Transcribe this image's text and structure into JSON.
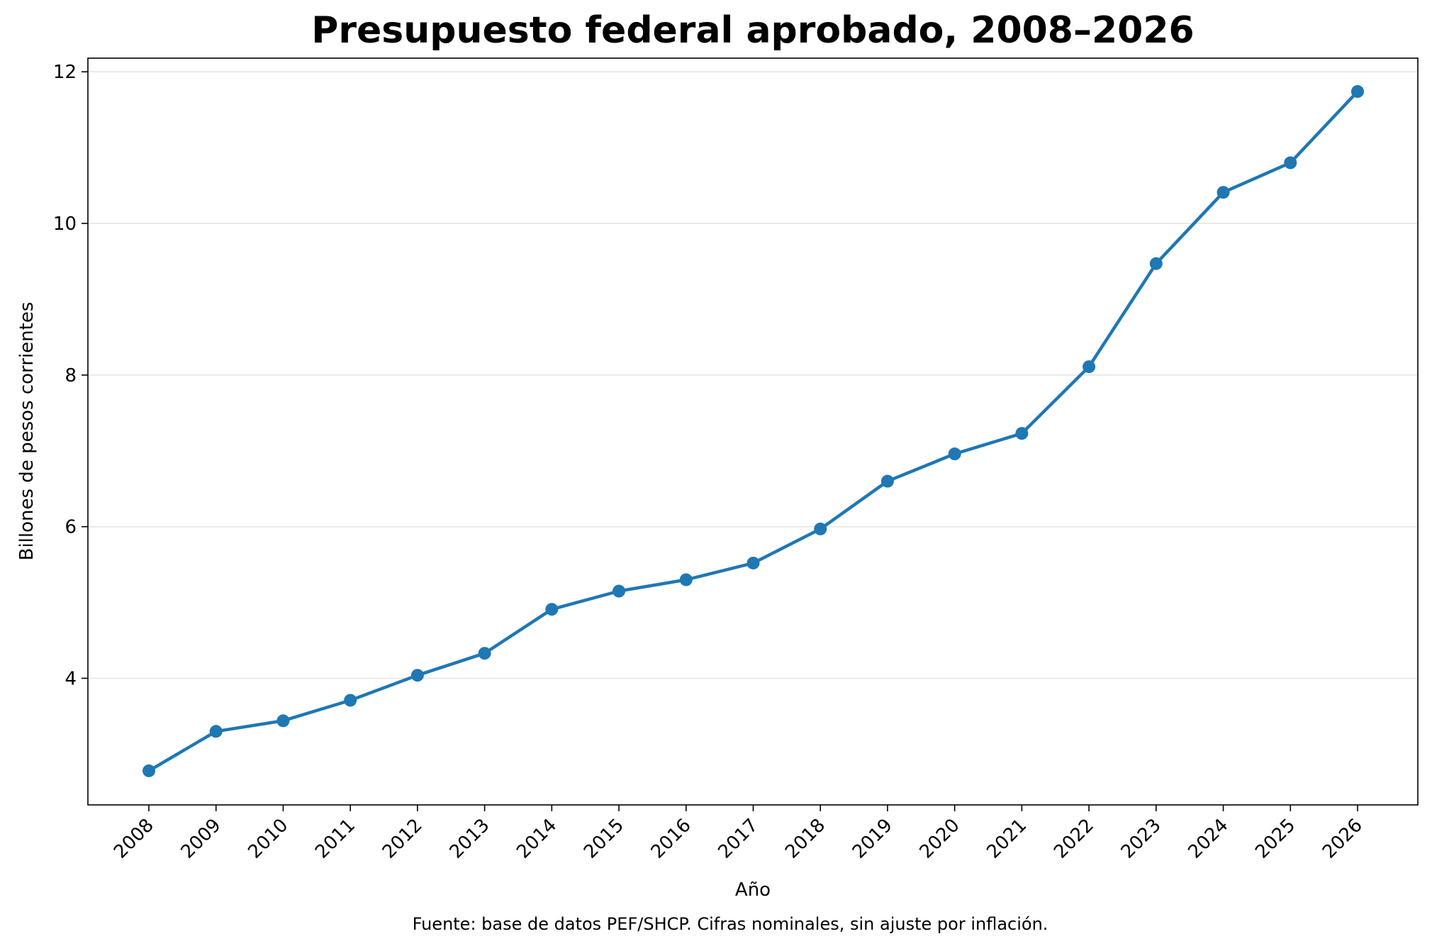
{
  "chart_data": {
    "type": "line",
    "title": "Presupuesto federal aprobado, 2008–2026",
    "xlabel": "Año",
    "ylabel": "Billones de pesos corrientes",
    "caption": "Fuente: base de datos PEF/SHCP. Cifras nominales, sin ajuste por inflación.",
    "categories": [
      "2008",
      "2009",
      "2010",
      "2011",
      "2012",
      "2013",
      "2014",
      "2015",
      "2016",
      "2017",
      "2018",
      "2019",
      "2020",
      "2021",
      "2022",
      "2023",
      "2024",
      "2025",
      "2026"
    ],
    "series": [
      {
        "values": [
          2.78,
          3.3,
          3.44,
          3.71,
          4.04,
          4.33,
          4.91,
          5.15,
          5.3,
          5.52,
          5.97,
          6.6,
          6.96,
          7.23,
          8.11,
          9.47,
          10.41,
          10.8,
          11.74
        ],
        "color": "#1f77b4"
      }
    ],
    "yticks": [
      4,
      6,
      8,
      10,
      12
    ],
    "ylim": [
      2.33,
      12.18
    ],
    "grid": "horizontal",
    "legend": "none"
  }
}
